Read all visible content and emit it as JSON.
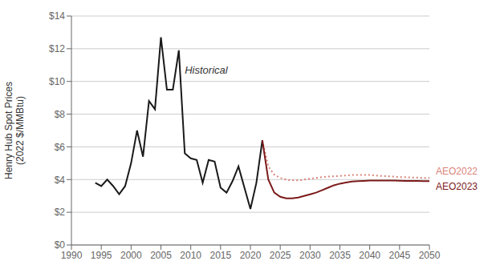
{
  "chart_data": {
    "type": "line",
    "y_label": "Henry Hub Spot Prices\n(2022 $/MMBtu)",
    "x": [
      1994,
      1995,
      1996,
      1997,
      1998,
      1999,
      2000,
      2001,
      2002,
      2003,
      2004,
      2005,
      2006,
      2007,
      2008,
      2009,
      2010,
      2011,
      2012,
      2013,
      2014,
      2015,
      2016,
      2017,
      2018,
      2019,
      2020,
      2021,
      2022,
      2023,
      2024,
      2025,
      2026,
      2027,
      2028,
      2029,
      2030,
      2031,
      2032,
      2033,
      2034,
      2035,
      2036,
      2037,
      2038,
      2039,
      2040,
      2041,
      2042,
      2043,
      2044,
      2045,
      2046,
      2047,
      2048,
      2049,
      2050
    ],
    "series": [
      {
        "color": "#1a1a1a",
        "line_style": "solid",
        "values": [
          3.8,
          3.6,
          4.0,
          3.6,
          3.1,
          3.6,
          5.0,
          7.0,
          5.4,
          8.8,
          8.3,
          12.7,
          9.5,
          9.5,
          11.9,
          5.6,
          5.3,
          5.2,
          3.8,
          5.2,
          5.1,
          3.5,
          3.2,
          3.9,
          4.8,
          3.5,
          2.2,
          3.8,
          6.4,
          null,
          null,
          null,
          null,
          null,
          null,
          null,
          null,
          null,
          null,
          null,
          null,
          null,
          null,
          null,
          null,
          null,
          null,
          null,
          null,
          null,
          null,
          null,
          null,
          null,
          null,
          null,
          null
        ]
      },
      {
        "name": "AEO2022",
        "color": "#d9837a",
        "line_style": "dotted",
        "values": [
          null,
          null,
          null,
          null,
          null,
          null,
          null,
          null,
          null,
          null,
          null,
          null,
          null,
          null,
          null,
          null,
          null,
          null,
          null,
          null,
          null,
          null,
          null,
          null,
          null,
          null,
          null,
          null,
          6.4,
          4.8,
          4.3,
          4.1,
          4.0,
          3.95,
          3.95,
          4.0,
          4.05,
          4.1,
          4.15,
          4.18,
          4.2,
          4.22,
          4.25,
          4.28,
          4.28,
          4.28,
          4.28,
          4.25,
          4.22,
          4.2,
          4.18,
          4.15,
          4.15,
          4.13,
          4.12,
          4.1,
          4.1
        ]
      },
      {
        "name": "AEO2023",
        "color": "#7b1a1a",
        "line_style": "solid",
        "values": [
          null,
          null,
          null,
          null,
          null,
          null,
          null,
          null,
          null,
          null,
          null,
          null,
          null,
          null,
          null,
          null,
          null,
          null,
          null,
          null,
          null,
          null,
          null,
          null,
          null,
          null,
          null,
          null,
          6.4,
          4.0,
          3.2,
          2.95,
          2.85,
          2.85,
          2.9,
          3.0,
          3.1,
          3.2,
          3.35,
          3.5,
          3.65,
          3.75,
          3.82,
          3.88,
          3.9,
          3.92,
          3.94,
          3.94,
          3.94,
          3.94,
          3.94,
          3.93,
          3.92,
          3.91,
          3.91,
          3.9,
          3.9
        ]
      }
    ],
    "xlim": [
      1990,
      2050
    ],
    "xticks": [
      1990,
      1995,
      2000,
      2005,
      2010,
      2015,
      2020,
      2025,
      2030,
      2035,
      2040,
      2045,
      2050
    ],
    "ylim": [
      0,
      14
    ],
    "yticks": [
      {
        "value": 0,
        "label": "$0"
      },
      {
        "value": 2,
        "label": "$2"
      },
      {
        "value": 4,
        "label": "$4"
      },
      {
        "value": 6,
        "label": "$6"
      },
      {
        "value": 8,
        "label": "$8"
      },
      {
        "value": 10,
        "label": "$10"
      },
      {
        "value": 12,
        "label": "$12"
      },
      {
        "value": 14,
        "label": "$14"
      }
    ],
    "grid": true,
    "annotations": [
      {
        "text": "Historical",
        "x": 2009,
        "y": 10.5
      }
    ]
  }
}
